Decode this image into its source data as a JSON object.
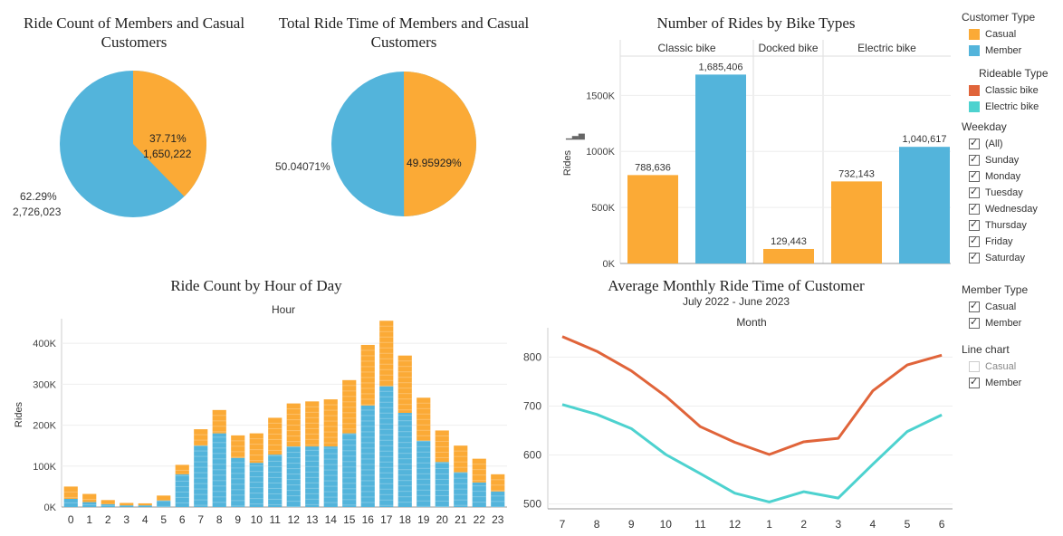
{
  "colors": {
    "casual": "#FBAA36",
    "member": "#53B4DB",
    "classic": "#E0643A",
    "electric": "#4DD2CF"
  },
  "pie1": {
    "title_line1": "Ride Count of Members and Casual",
    "title_line2": "Customers",
    "casual_pct": "37.71%",
    "casual_val": "1,650,222",
    "member_pct": "62.29%",
    "member_val": "2,726,023"
  },
  "pie2": {
    "title_line1": "Total Ride Time of Members and Casual",
    "title_line2": "Customers",
    "casual_pct": "49.95929%",
    "member_pct": "50.04071%"
  },
  "legend": {
    "customer_type": {
      "title": "Customer Type",
      "items": [
        "Casual",
        "Member"
      ]
    },
    "rideable_type": {
      "title": "Rideable Type",
      "items": [
        "Classic bike",
        "Electric bike"
      ]
    },
    "weekday": {
      "title": "Weekday",
      "items": [
        "(All)",
        "Sunday",
        "Monday",
        "Tuesday",
        "Wednesday",
        "Thursday",
        "Friday",
        "Saturday"
      ]
    },
    "member_type": {
      "title": "Member Type",
      "items": [
        "Casual",
        "Member"
      ]
    },
    "line_chart": {
      "title": "Line chart",
      "items": [
        "Casual",
        "Member"
      ]
    }
  },
  "chart_data": [
    {
      "type": "pie",
      "title": "Ride Count of Members and Casual Customers",
      "labels": [
        "Casual",
        "Member"
      ],
      "values": [
        1650222,
        2726023
      ],
      "percentages": [
        37.71,
        62.29
      ]
    },
    {
      "type": "pie",
      "title": "Total Ride Time of Members and Casual Customers",
      "labels": [
        "Casual",
        "Member"
      ],
      "percentages": [
        49.95929,
        50.04071
      ]
    },
    {
      "type": "bar",
      "title": "Number of Rides by Bike Types",
      "ylabel": "Rides",
      "groups": [
        "Classic bike",
        "Docked bike",
        "Electric bike"
      ],
      "bars": [
        {
          "group": "Classic bike",
          "series": "Casual",
          "value": 788636,
          "label": "788,636"
        },
        {
          "group": "Classic bike",
          "series": "Member",
          "value": 1685406,
          "label": "1,685,406"
        },
        {
          "group": "Docked bike",
          "series": "Casual",
          "value": 129443,
          "label": "129,443"
        },
        {
          "group": "Electric bike",
          "series": "Casual",
          "value": 732143,
          "label": "732,143"
        },
        {
          "group": "Electric bike",
          "series": "Member",
          "value": 1040617,
          "label": "1,040,617"
        }
      ],
      "yticks": [
        0,
        500000,
        1000000,
        1500000
      ],
      "ytick_labels": [
        "0K",
        "500K",
        "1000K",
        "1500K"
      ],
      "ylim": [
        0,
        1850000
      ]
    },
    {
      "type": "bar",
      "stacked": true,
      "title": "Ride Count by Hour of Day",
      "xlabel": "Hour",
      "ylabel": "Rides",
      "categories": [
        "0",
        "1",
        "2",
        "3",
        "4",
        "5",
        "6",
        "7",
        "8",
        "9",
        "10",
        "11",
        "12",
        "13",
        "14",
        "15",
        "16",
        "17",
        "18",
        "19",
        "20",
        "21",
        "22",
        "23"
      ],
      "series": [
        {
          "name": "Member",
          "values": [
            20000,
            12000,
            7000,
            4000,
            4000,
            16000,
            80000,
            150000,
            180000,
            120000,
            108000,
            128000,
            148000,
            148000,
            148000,
            180000,
            248000,
            295000,
            230000,
            162000,
            110000,
            85000,
            60000,
            38000
          ]
        },
        {
          "name": "Casual",
          "values": [
            30000,
            20000,
            10000,
            6000,
            5000,
            12000,
            23000,
            40000,
            57000,
            55000,
            72000,
            90000,
            105000,
            110000,
            115000,
            130000,
            148000,
            160000,
            140000,
            105000,
            77000,
            65000,
            58000,
            42000
          ]
        }
      ],
      "yticks": [
        0,
        100000,
        200000,
        300000,
        400000
      ],
      "ytick_labels": [
        "0K",
        "100K",
        "200K",
        "300K",
        "400K"
      ],
      "ylim": [
        0,
        460000
      ]
    },
    {
      "type": "line",
      "title": "Average Monthly Ride Time of Customer",
      "subtitle": "July 2022 - June 2023",
      "xlabel": "Month",
      "categories": [
        "7",
        "8",
        "9",
        "10",
        "11",
        "12",
        "1",
        "2",
        "3",
        "4",
        "5",
        "6"
      ],
      "series": [
        {
          "name": "Classic bike",
          "values": [
            842,
            812,
            772,
            720,
            658,
            626,
            601,
            627,
            634,
            731,
            784,
            804
          ]
        },
        {
          "name": "Electric bike",
          "values": [
            703,
            683,
            654,
            601,
            562,
            522,
            504,
            525,
            512,
            581,
            648,
            682
          ]
        }
      ],
      "yticks": [
        500,
        600,
        700,
        800
      ],
      "ylim": [
        490,
        860
      ]
    }
  ]
}
